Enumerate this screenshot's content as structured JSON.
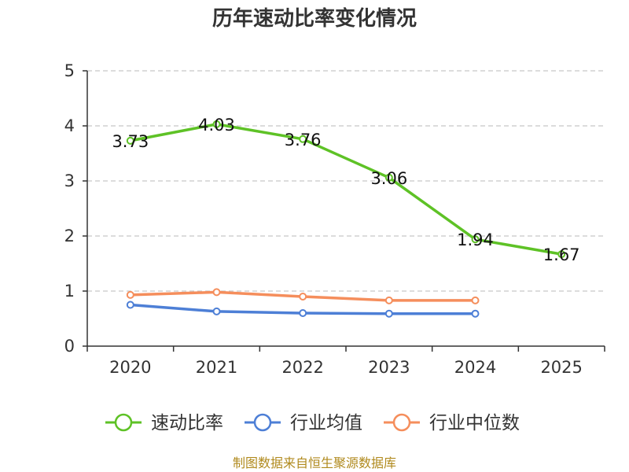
{
  "chart_data": {
    "type": "line",
    "title": "历年速动比率变化情况",
    "categories": [
      "2020",
      "2021",
      "2022",
      "2023",
      "2024",
      "2025"
    ],
    "yticks": [
      "0",
      "1",
      "2",
      "3",
      "4",
      "5"
    ],
    "ylim": [
      0,
      5
    ],
    "grid": true,
    "legend_position": "bottom",
    "series": [
      {
        "name": "速动比率",
        "color": "#5ec226",
        "values": [
          3.73,
          4.03,
          3.76,
          3.06,
          1.94,
          1.67
        ],
        "labels": [
          "3.73",
          "4.03",
          "3.76",
          "3.06",
          "1.94",
          "1.67"
        ]
      },
      {
        "name": "行业均值",
        "color": "#4d7fd6",
        "values": [
          0.75,
          0.63,
          0.6,
          0.59,
          0.59,
          null
        ]
      },
      {
        "name": "行业中位数",
        "color": "#f58e5c",
        "values": [
          0.93,
          0.98,
          0.9,
          0.83,
          0.83,
          null
        ]
      }
    ],
    "source": "制图数据来自恒生聚源数据库"
  }
}
